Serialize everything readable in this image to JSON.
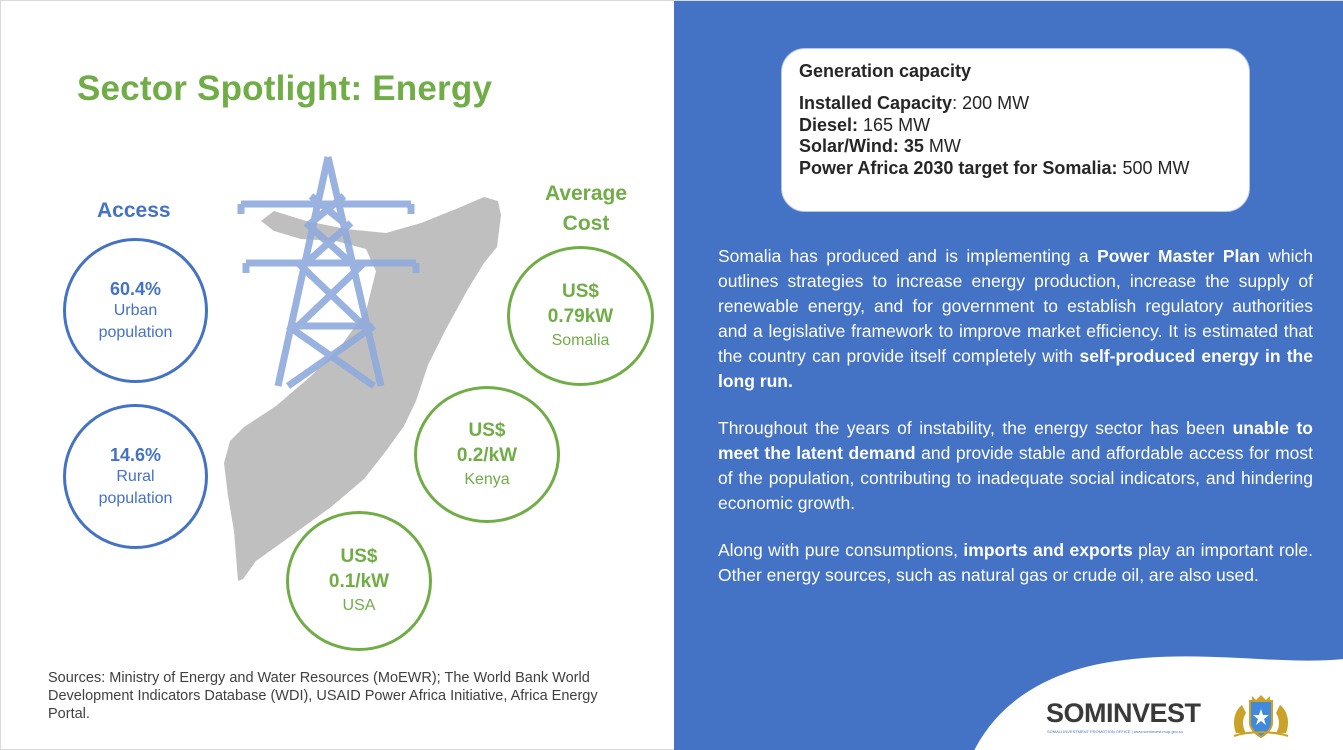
{
  "title": "Sector Spotlight: Energy",
  "access": {
    "heading": "Access",
    "urban": {
      "value": "60.4%",
      "label1": "Urban",
      "label2": "population"
    },
    "rural": {
      "value": "14.6%",
      "label1": "Rural",
      "label2": "population"
    }
  },
  "cost": {
    "heading_line1": "Average",
    "heading_line2": "Cost",
    "somalia": {
      "line1": "US$",
      "line2": "0.79kW",
      "country": "Somalia"
    },
    "kenya": {
      "line1": "US$",
      "line2": "0.2/kW",
      "country": "Kenya"
    },
    "usa": {
      "line1": "US$",
      "line2": "0.1/kW",
      "country": "USA"
    }
  },
  "sources": "Sources: Ministry of Energy and Water Resources (MoEWR); The World Bank World Development Indicators Database (WDI), USAID Power Africa Initiative, Africa Energy Portal.",
  "generation": {
    "title": "Generation capacity",
    "installed_label": "Installed Capacity",
    "installed_sep": ": ",
    "installed_value": "200",
    "installed_unit": " MW",
    "diesel_label": "Diesel:",
    "diesel_value": " 165",
    "diesel_unit": " MW",
    "solar_label": "Solar/Wind: ",
    "solar_value": "35",
    "solar_unit": " MW",
    "target_label": "Power Africa 2030 target for Somalia:",
    "target_value": " 500",
    "target_unit": " MW"
  },
  "paragraph1": {
    "t1": "Somalia has produced and is implementing a ",
    "b1": "Power Master Plan",
    "t2": " which outlines strategies to increase energy production, increase the supply of renewable energy, and for government to establish regulatory authorities and a legislative framework to improve market efficiency. It is estimated that the country can provide itself completely with ",
    "b2": "self-produced energy in the long run."
  },
  "paragraph2": {
    "t1": "Throughout the years of instability, the energy sector has been ",
    "b1": "unable to meet the latent demand",
    "t2": " and provide stable and affordable access for most of the population, contributing to inadequate social indicators, and hindering economic growth."
  },
  "paragraph3": {
    "t1": "Along with pure consumptions, ",
    "b1": "imports and exports",
    "t2": " play an important role. Other energy sources, such as natural gas or crude oil, are also used."
  },
  "logo": {
    "text": "SOMINVEST",
    "tagline": "SOMALI INVESTMENT PROMOTION OFFICE | www.sominvest.mop.gov.so"
  },
  "colors": {
    "green": "#70ad47",
    "blue": "#4472c4",
    "map_gray": "#bfbfbf",
    "tower": "#8faadc"
  }
}
